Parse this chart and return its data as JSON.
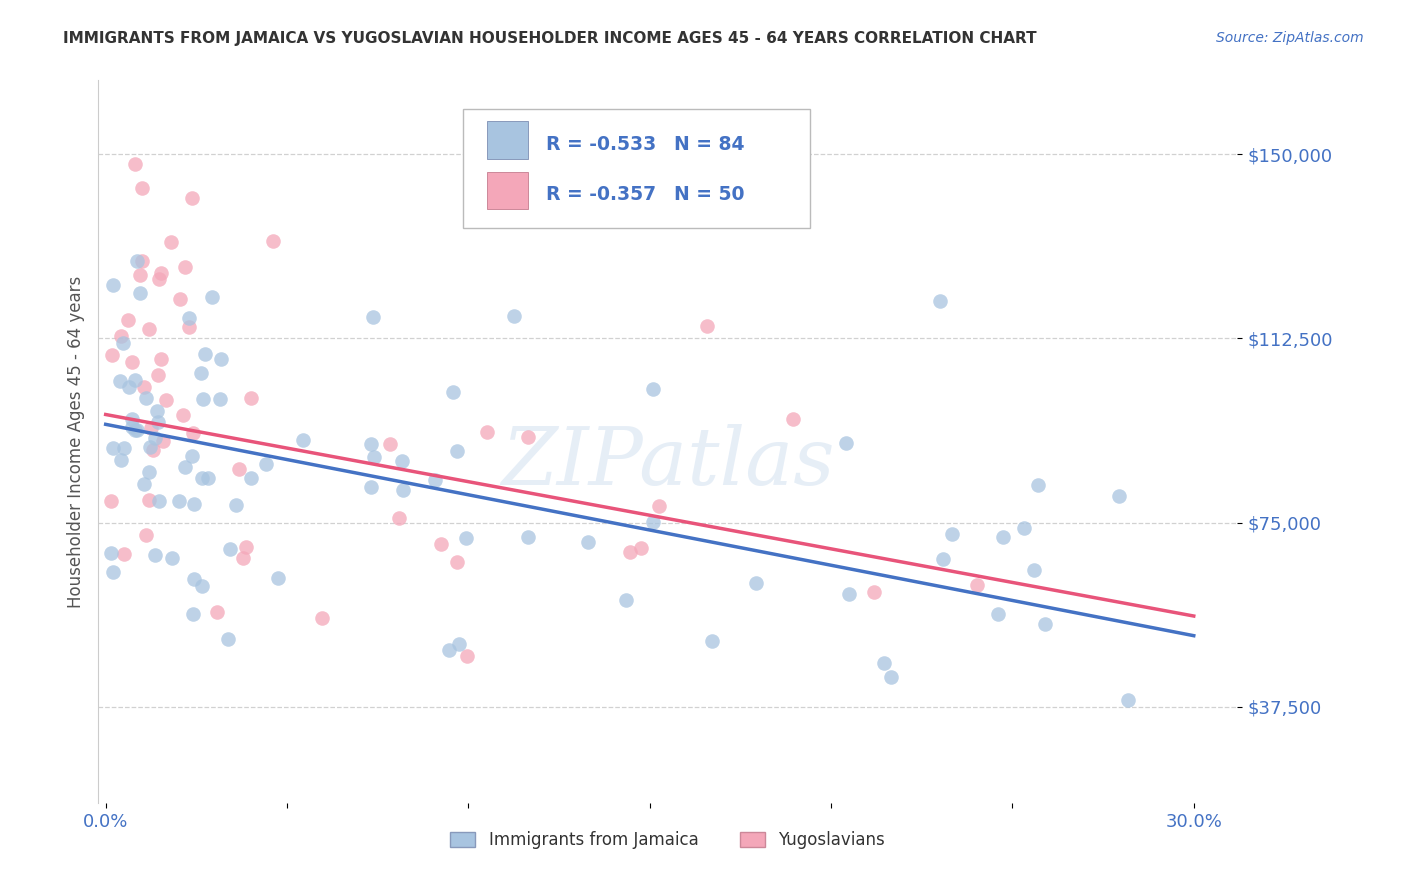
{
  "title": "IMMIGRANTS FROM JAMAICA VS YUGOSLAVIAN HOUSEHOLDER INCOME AGES 45 - 64 YEARS CORRELATION CHART",
  "source": "Source: ZipAtlas.com",
  "ylabel": "Householder Income Ages 45 - 64 years",
  "y_ticks": [
    37500,
    75000,
    112500,
    150000
  ],
  "y_tick_labels": [
    "$37,500",
    "$75,000",
    "$112,500",
    "$150,000"
  ],
  "jamaica_color": "#a8c4e0",
  "yugoslavian_color": "#f4a7b9",
  "jamaica_line_color": "#4472c4",
  "yugoslavian_line_color": "#e8547a",
  "jamaica_R": -0.533,
  "jamaica_N": 84,
  "yugoslavian_R": -0.357,
  "yugoslavian_N": 50,
  "watermark": "ZIPatlas",
  "background_color": "#ffffff",
  "grid_color": "#cccccc",
  "title_color": "#333333",
  "axis_label_color": "#4472c4",
  "ylabel_color": "#555555",
  "legend_label1": "Immigrants from Jamaica",
  "legend_label2": "Yugoslavians",
  "xlim_min": -0.002,
  "xlim_max": 0.312,
  "ylim_min": 18000,
  "ylim_max": 165000,
  "jamaica_line_x0": 0.0,
  "jamaica_line_y0": 95000,
  "jamaica_line_x1": 0.3,
  "jamaica_line_y1": 52000,
  "yugoslavian_line_x0": 0.0,
  "yugoslavian_line_y0": 97000,
  "yugoslavian_line_x1": 0.3,
  "yugoslavian_line_y1": 56000
}
